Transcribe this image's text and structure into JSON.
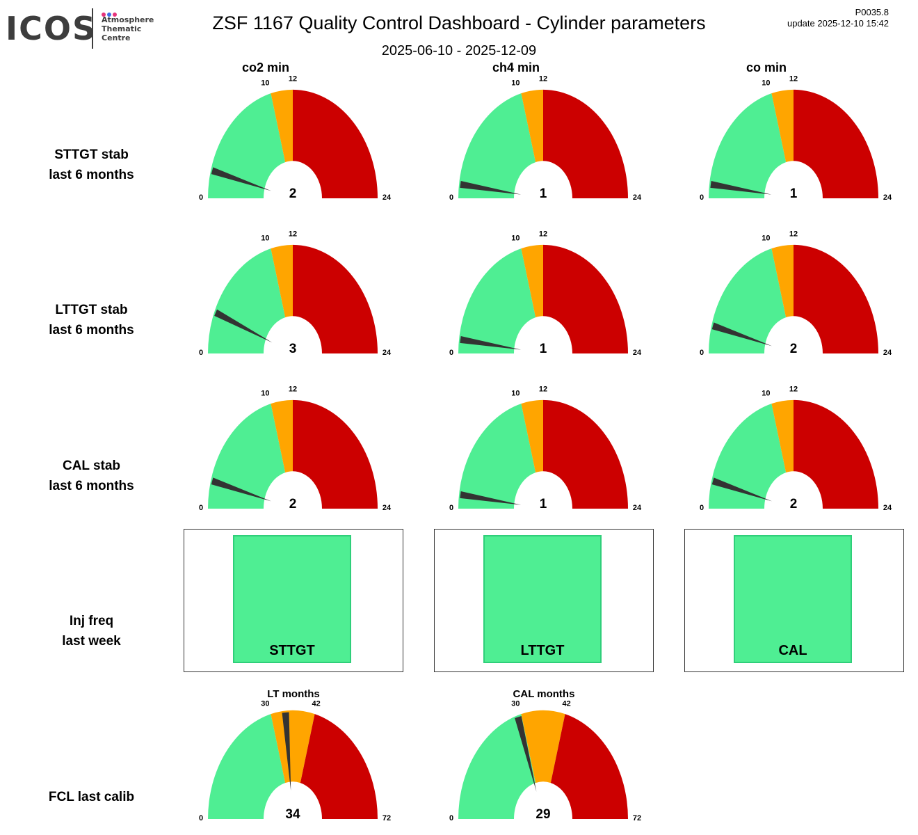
{
  "logo": {
    "wordmark": "ICOS",
    "text": "Atmosphere\nThematic\nCentre",
    "dot_colors": [
      "#e6337a",
      "#3d6ee8",
      "#e6337a"
    ]
  },
  "header": {
    "title": "ZSF 1167 Quality Control Dashboard - Cylinder parameters",
    "subtitle": "2025-06-10 - 2025-12-09",
    "code": "P0035.8",
    "update": "update  2025-12-10 15:42"
  },
  "colors": {
    "ok": "#4fee93",
    "warn": "#ffa500",
    "bad": "#cc0000",
    "needle": "#333333"
  },
  "columns": [
    "co2 min",
    "ch4 min",
    "co min"
  ],
  "rows": [
    "STTGT stab\nlast 6 months",
    "LTTGT stab\nlast 6 months",
    "CAL stab\nlast 6 months",
    "Inj freq\nlast week",
    "FCL last calib"
  ],
  "chart_data": [
    {
      "type": "gauge",
      "row": "STTGT stab last 6 months",
      "gauges": [
        {
          "column": "co2 min",
          "value": 2,
          "min": 0,
          "max": 24,
          "thresholds": [
            10,
            12
          ],
          "tick_labels": [
            "0",
            "10",
            "12",
            "24"
          ],
          "value_label": "2"
        },
        {
          "column": "ch4 min",
          "value": 1,
          "min": 0,
          "max": 24,
          "thresholds": [
            10,
            12
          ],
          "tick_labels": [
            "0",
            "10",
            "12",
            "24"
          ],
          "value_label": "1"
        },
        {
          "column": "co min",
          "value": 1,
          "min": 0,
          "max": 24,
          "thresholds": [
            10,
            12
          ],
          "tick_labels": [
            "0",
            "10",
            "12",
            "24"
          ],
          "value_label": "1"
        }
      ]
    },
    {
      "type": "gauge",
      "row": "LTTGT stab last 6 months",
      "gauges": [
        {
          "column": "co2 min",
          "value": 3,
          "min": 0,
          "max": 24,
          "thresholds": [
            10,
            12
          ],
          "tick_labels": [
            "0",
            "10",
            "12",
            "24"
          ],
          "value_label": "3"
        },
        {
          "column": "ch4 min",
          "value": 1,
          "min": 0,
          "max": 24,
          "thresholds": [
            10,
            12
          ],
          "tick_labels": [
            "0",
            "10",
            "12",
            "24"
          ],
          "value_label": "1"
        },
        {
          "column": "co min",
          "value": 2,
          "min": 0,
          "max": 24,
          "thresholds": [
            10,
            12
          ],
          "tick_labels": [
            "0",
            "10",
            "12",
            "24"
          ],
          "value_label": "2"
        }
      ]
    },
    {
      "type": "gauge",
      "row": "CAL stab last 6 months",
      "gauges": [
        {
          "column": "co2 min",
          "value": 2,
          "min": 0,
          "max": 24,
          "thresholds": [
            10,
            12
          ],
          "tick_labels": [
            "0",
            "10",
            "12",
            "24"
          ],
          "value_label": "2"
        },
        {
          "column": "ch4 min",
          "value": 1,
          "min": 0,
          "max": 24,
          "thresholds": [
            10,
            12
          ],
          "tick_labels": [
            "0",
            "10",
            "12",
            "24"
          ],
          "value_label": "1"
        },
        {
          "column": "co min",
          "value": 2,
          "min": 0,
          "max": 24,
          "thresholds": [
            10,
            12
          ],
          "tick_labels": [
            "0",
            "10",
            "12",
            "24"
          ],
          "value_label": "2"
        }
      ]
    },
    {
      "type": "status",
      "row": "Inj freq last week",
      "panels": [
        {
          "label": "STTGT",
          "status": "ok"
        },
        {
          "label": "LTTGT",
          "status": "ok"
        },
        {
          "label": "CAL",
          "status": "ok"
        }
      ]
    },
    {
      "type": "gauge",
      "row": "FCL last calib",
      "gauges": [
        {
          "title": "LT months",
          "value": 34,
          "min": 0,
          "max": 72,
          "thresholds": [
            30,
            42
          ],
          "tick_labels": [
            "0",
            "30",
            "42",
            "72"
          ],
          "value_label": "34"
        },
        {
          "title": "CAL months",
          "value": 29,
          "min": 0,
          "max": 72,
          "thresholds": [
            30,
            42
          ],
          "tick_labels": [
            "0",
            "30",
            "42",
            "72"
          ],
          "value_label": "29"
        }
      ]
    }
  ]
}
